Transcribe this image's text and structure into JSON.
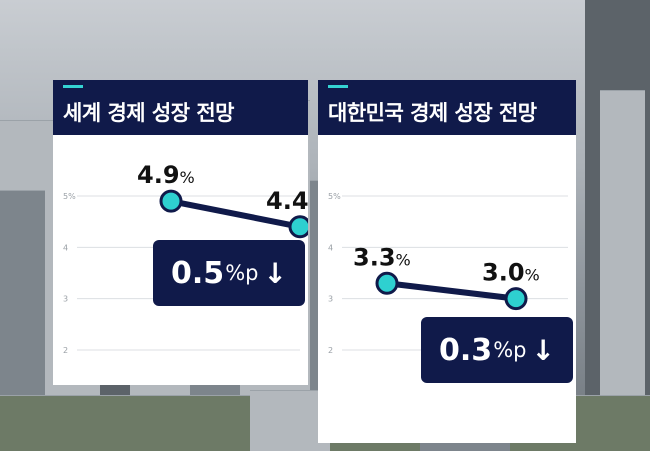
{
  "chart_data": [
    {
      "type": "line",
      "title": "세계 경제 성장 전망",
      "ylim": [
        1.5,
        5.7
      ],
      "yticks": [
        "5%",
        "4",
        "3",
        "2"
      ],
      "x": [
        0,
        1
      ],
      "values": [
        4.9,
        4.4
      ],
      "value_labels": [
        "4.9",
        "4.4"
      ],
      "value_suffix": "%",
      "change": {
        "value": "0.5",
        "unit": "%p",
        "arrow": "↓"
      },
      "grid": true
    },
    {
      "type": "line",
      "title": "대한민국 경제 성장 전망",
      "ylim": [
        1.5,
        5.7
      ],
      "yticks": [
        "5%",
        "4",
        "3",
        "2"
      ],
      "x": [
        0,
        1
      ],
      "values": [
        3.3,
        3.0
      ],
      "value_labels": [
        "3.3",
        "3.0"
      ],
      "value_suffix": "%",
      "change": {
        "value": "0.3",
        "unit": "%p",
        "arrow": "↓"
      },
      "grid": true
    }
  ],
  "colors": {
    "panel": "#101a4a",
    "accent": "#35d3d3",
    "line": "#101a4a",
    "marker": "#2ed0d0",
    "plot": "#ffffff",
    "grid": "#dcdfe3"
  }
}
